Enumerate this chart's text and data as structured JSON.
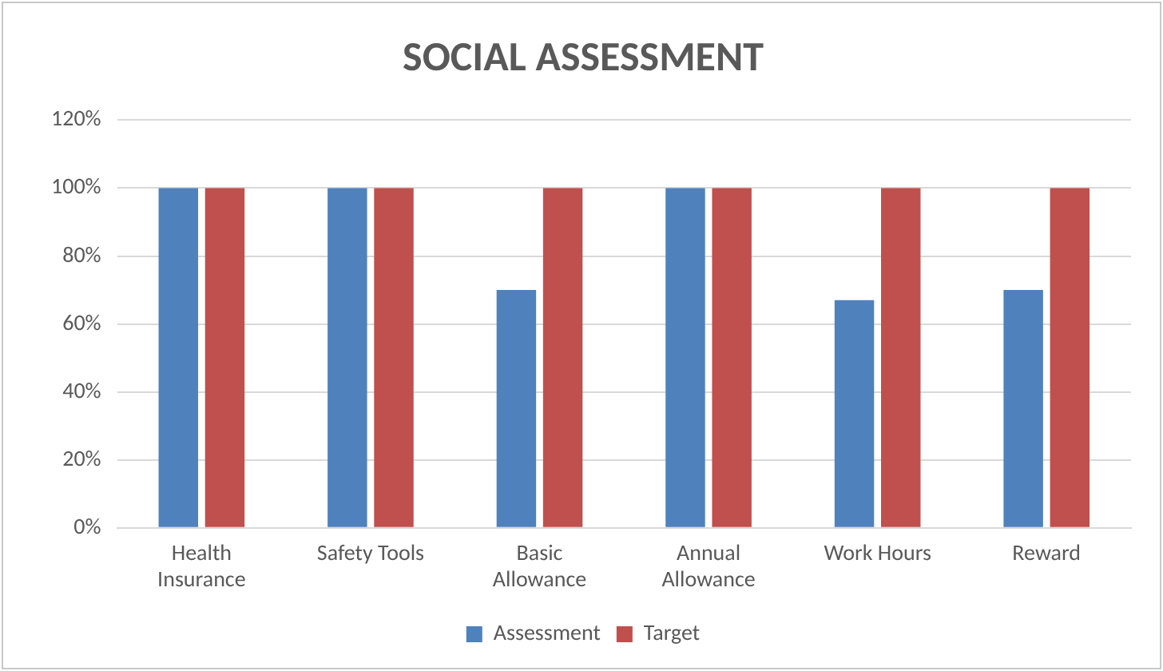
{
  "chart_data": {
    "type": "bar",
    "title": "SOCIAL ASSESSMENT",
    "categories": [
      "Health\nInsurance",
      "Safety Tools",
      "Basic\nAllowance",
      "Annual\nAllowance",
      "Work Hours",
      "Reward"
    ],
    "series": [
      {
        "name": "Assessment",
        "color": "#4f81bd",
        "values": [
          100,
          100,
          70,
          100,
          67,
          70
        ]
      },
      {
        "name": "Target",
        "color": "#c0504d",
        "values": [
          100,
          100,
          100,
          100,
          100,
          100
        ]
      }
    ],
    "ylim": [
      0,
      120
    ],
    "yticks": [
      {
        "value": 0,
        "label": "0%"
      },
      {
        "value": 20,
        "label": "20%"
      },
      {
        "value": 40,
        "label": "40%"
      },
      {
        "value": 60,
        "label": "60%"
      },
      {
        "value": 80,
        "label": "80%"
      },
      {
        "value": 100,
        "label": "100%"
      },
      {
        "value": 120,
        "label": "120%"
      }
    ],
    "grid": "y",
    "legend": "bottom"
  }
}
